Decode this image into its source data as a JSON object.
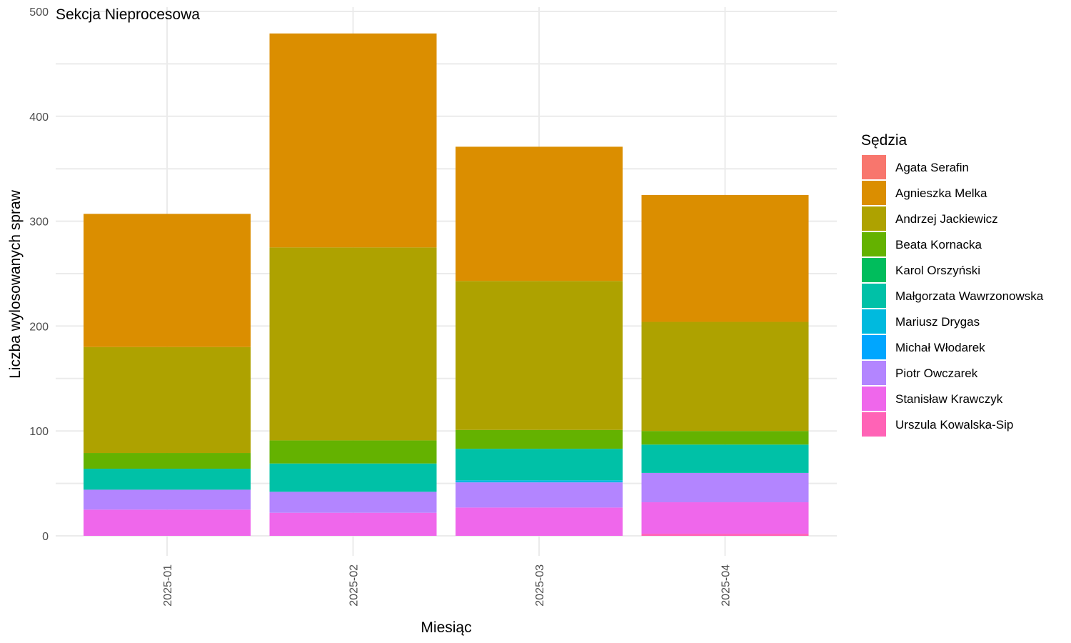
{
  "chart_data": {
    "type": "bar",
    "stacked": true,
    "title": "Sekcja Nieprocesowa",
    "xlabel": "Miesiąc",
    "ylabel": "Liczba wylosowanych spraw",
    "legend_title": "Sędzia",
    "legend_position": "right",
    "grid": true,
    "ylim": [
      0,
      500
    ],
    "yticks": [
      "0",
      "100",
      "200",
      "300",
      "400",
      "500"
    ],
    "categories": [
      "2025-01",
      "2025-02",
      "2025-03",
      "2025-04"
    ],
    "series": [
      {
        "name": "Agata Serafin",
        "color": "#F8766D",
        "values": [
          0,
          0,
          0,
          0
        ]
      },
      {
        "name": "Agnieszka Melka",
        "color": "#DB8E00",
        "values": [
          127,
          204,
          128,
          121
        ]
      },
      {
        "name": "Andrzej Jackiewicz",
        "color": "#AEA200",
        "values": [
          101,
          184,
          142,
          104
        ]
      },
      {
        "name": "Beata Kornacka",
        "color": "#64B200",
        "values": [
          15,
          22,
          18,
          13
        ]
      },
      {
        "name": "Karol Orszyński",
        "color": "#00BD5C",
        "values": [
          0,
          0,
          0,
          0
        ]
      },
      {
        "name": "Małgorzata Wawrzonowska",
        "color": "#00C1A7",
        "values": [
          20,
          27,
          30,
          27
        ]
      },
      {
        "name": "Mariusz Drygas",
        "color": "#00BADE",
        "values": [
          0,
          0,
          2,
          0
        ]
      },
      {
        "name": "Michał Włodarek",
        "color": "#00A6FF",
        "values": [
          0,
          0,
          0,
          0
        ]
      },
      {
        "name": "Piotr Owczarek",
        "color": "#B385FF",
        "values": [
          19,
          20,
          24,
          28
        ]
      },
      {
        "name": "Stanisław Krawczyk",
        "color": "#EF67EB",
        "values": [
          25,
          22,
          27,
          30
        ]
      },
      {
        "name": "Urszula Kowalska-Sip",
        "color": "#FF63B6",
        "values": [
          0,
          0,
          0,
          2
        ]
      }
    ]
  }
}
